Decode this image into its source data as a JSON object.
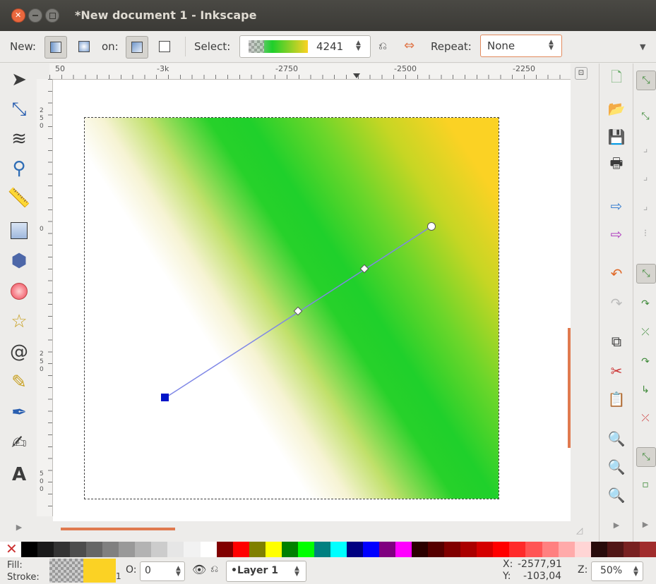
{
  "window": {
    "title": "*New document 1 - Inkscape"
  },
  "toolbar": {
    "new_label": "New:",
    "on_label": "on:",
    "select_label": "Select:",
    "gradient_count": "4241",
    "repeat_label": "Repeat:",
    "repeat_value": "None"
  },
  "ruler": {
    "h_labels": [
      "50",
      "-3k",
      "-2750",
      "-2500",
      "-2250"
    ],
    "v_labels": [
      "2 5 0",
      "0",
      "2 5 0",
      "5 0 0"
    ]
  },
  "gradient": {
    "start_color": "#ffffff",
    "mid_color": "#1fd02b",
    "end_color": "#fbd224",
    "handle_color": "#0015c8"
  },
  "palette": [
    "#000000",
    "#1a1a1a",
    "#333333",
    "#4d4d4d",
    "#666666",
    "#808080",
    "#999999",
    "#b3b3b3",
    "#cccccc",
    "#e6e6e6",
    "#f2f2f2",
    "#ffffff",
    "#800000",
    "#ff0000",
    "#808000",
    "#ffff00",
    "#008000",
    "#00ff00",
    "#008080",
    "#00ffff",
    "#000080",
    "#0000ff",
    "#800080",
    "#ff00ff",
    "#2b0000",
    "#550000",
    "#800000",
    "#aa0000",
    "#d40000",
    "#ff0000",
    "#ff2a2a",
    "#ff5555",
    "#ff8080",
    "#ffaaaa",
    "#ffd5d5",
    "#280b0b",
    "#501616",
    "#782121",
    "#a02c2c"
  ],
  "status": {
    "fill_label": "Fill:",
    "stroke_label": "Stroke:",
    "stroke_width": "1",
    "opacity_label": "O:",
    "opacity_value": "0",
    "layer": "•Layer 1",
    "x_label": "X:",
    "x_value": "-2577,91",
    "y_label": "Y:",
    "y_value": "-103,04",
    "zoom_label": "Z:",
    "zoom_value": "50%"
  }
}
